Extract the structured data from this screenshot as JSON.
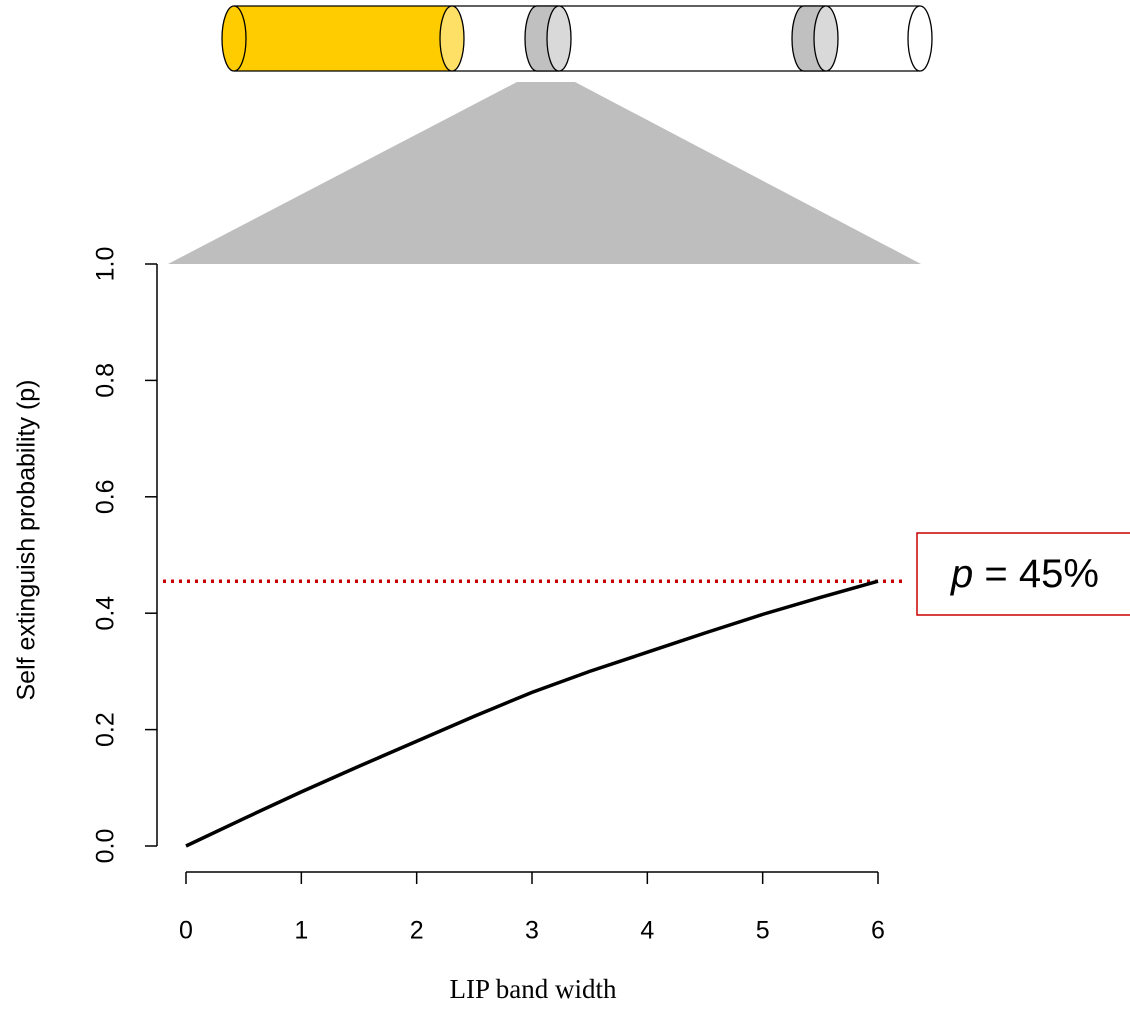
{
  "chart_data": {
    "type": "line",
    "x_label": "LIP band width",
    "y_label": "Self extinguish probability (p)",
    "x": [
      0,
      0.5,
      1,
      1.5,
      2,
      2.5,
      3,
      3.5,
      4,
      4.5,
      5,
      5.5,
      6
    ],
    "values": [
      0,
      0.047,
      0.093,
      0.137,
      0.18,
      0.223,
      0.264,
      0.3,
      0.333,
      0.366,
      0.398,
      0.427,
      0.455
    ],
    "color": "#000000",
    "xlim": [
      0,
      6
    ],
    "xticks": [
      0,
      1,
      2,
      3,
      4,
      5,
      6
    ],
    "ylim": [
      0,
      1
    ],
    "yticks": [
      {
        "value": 0,
        "label": "0.0"
      },
      0.2,
      0.4,
      0.6,
      0.8,
      {
        "value": 1,
        "label": "1.0"
      }
    ],
    "reference_line": {
      "value": 0.455,
      "color": "#cc0000"
    },
    "annotation": {
      "symbol": "p",
      "text": "= 45%"
    }
  }
}
